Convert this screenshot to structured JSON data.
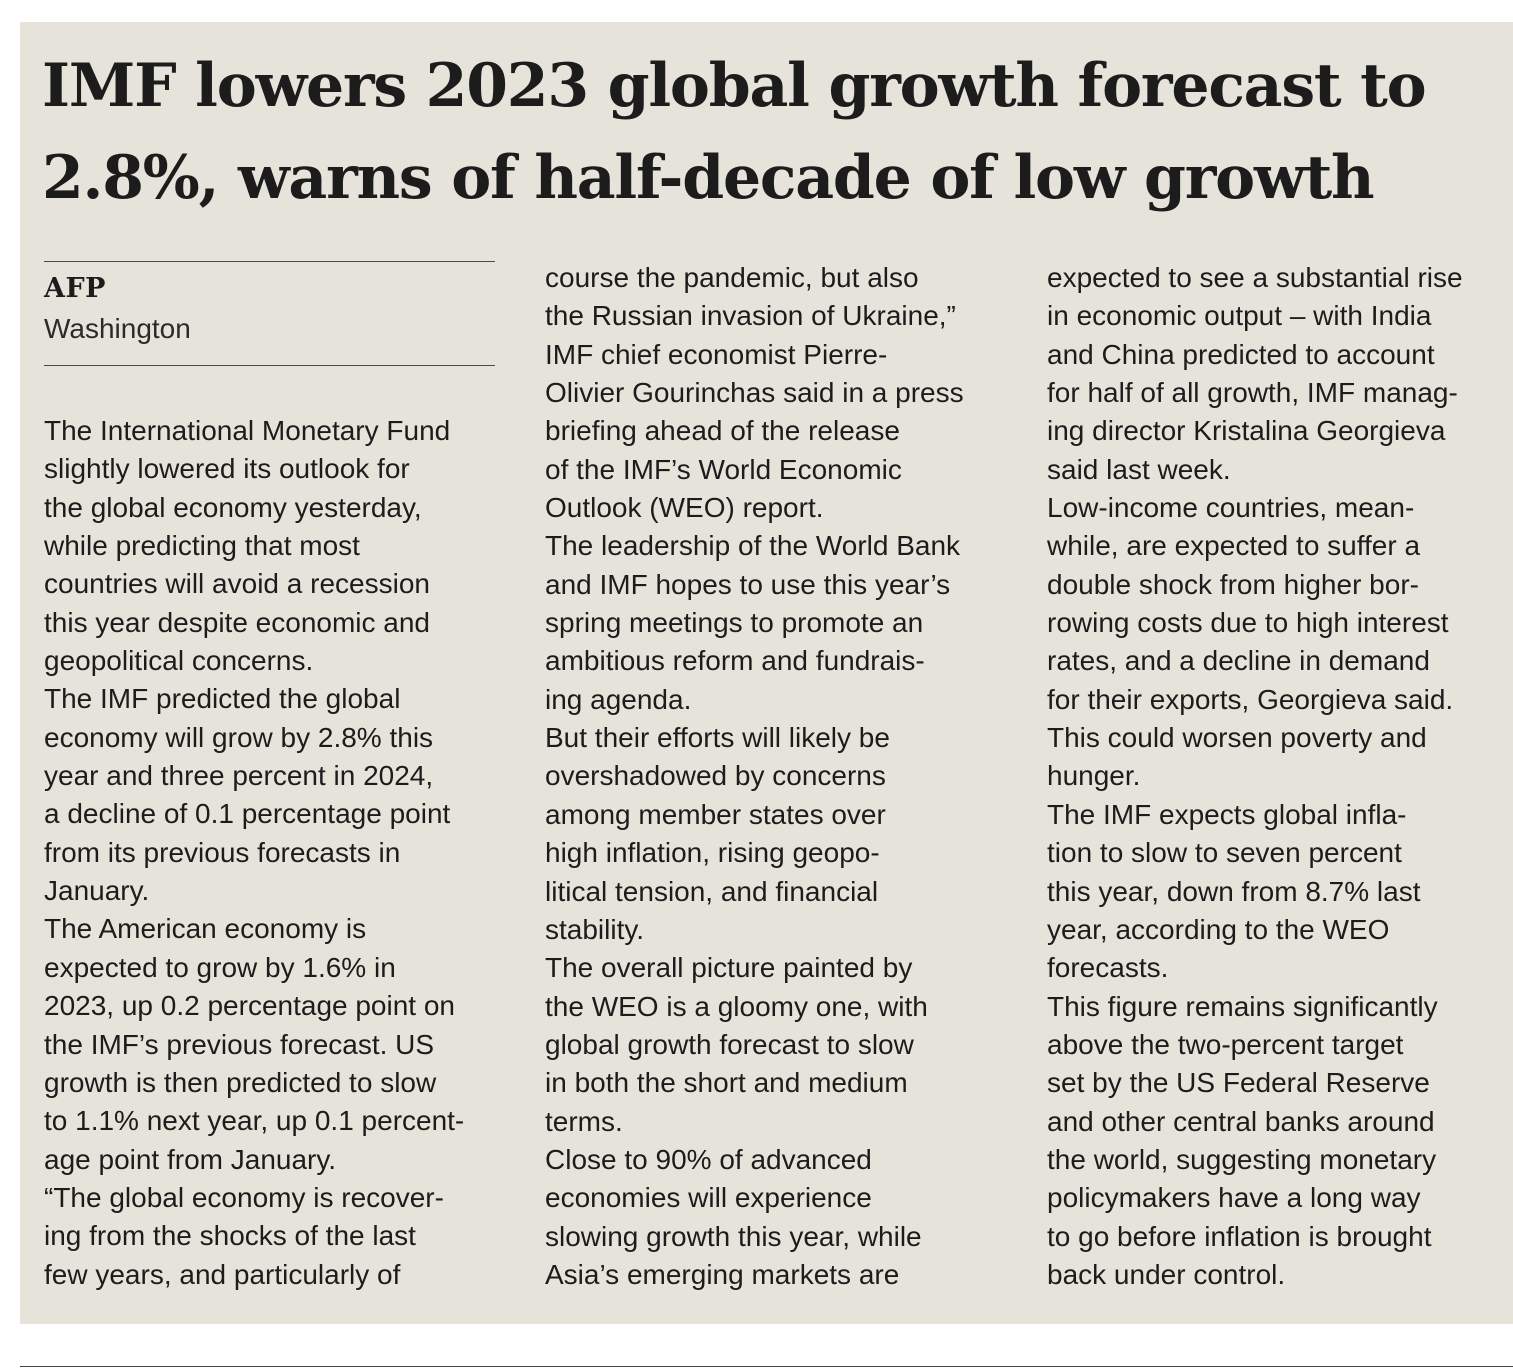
{
  "article": {
    "headline_line1": "IMF lowers 2023 global growth forecast to",
    "headline_line2": "2.8%, warns of half-decade of low growth",
    "agency": "AFP",
    "dateline": "Washington",
    "columns": [
      [
        "The International Monetary Fund",
        "slightly lowered its outlook for",
        "the global economy yesterday,",
        "while predicting that most",
        "countries will avoid a recession",
        "this year despite economic and",
        "geopolitical concerns.",
        "The IMF predicted the global",
        "economy will grow by 2.8% this",
        "year and three percent in 2024,",
        "a decline of 0.1 percentage point",
        "from its previous forecasts in",
        "January.",
        "The American economy is",
        "expected to grow by 1.6% in",
        "2023, up 0.2 percentage point on",
        "the IMF’s previous forecast. US",
        "growth is then predicted to slow",
        "to 1.1% next year, up 0.1 percent-",
        "age point from January.",
        "“The global economy is recover-",
        "ing from the shocks of the last",
        "few years, and particularly of"
      ],
      [
        "course the pandemic, but also",
        "the Russian invasion of Ukraine,”",
        "IMF chief economist Pierre-",
        "Olivier Gourinchas said in a press",
        "briefing ahead of the release",
        "of the IMF’s World Economic",
        "Outlook (WEO) report.",
        "The leadership of the World Bank",
        "and IMF hopes to use this year’s",
        "spring meetings to promote an",
        "ambitious reform and fundrais-",
        "ing agenda.",
        "But their efforts will likely be",
        "overshadowed by concerns",
        "among member states over",
        "high inflation, rising geopo-",
        "litical tension, and financial",
        "stability.",
        "The overall picture painted by",
        "the WEO is a gloomy one, with",
        "global growth forecast to slow",
        "in both the short and medium",
        "terms.",
        "Close to 90% of advanced",
        "economies will experience",
        "slowing growth this year, while",
        "Asia’s emerging markets are"
      ],
      [
        "expected to see a substantial rise",
        "in economic output – with India",
        "and China predicted to account",
        "for half of all growth, IMF manag-",
        "ing director Kristalina Georgieva",
        "said last week.",
        "Low-income countries, mean-",
        "while, are expected to suffer a",
        "double shock from higher bor-",
        "rowing costs due to high interest",
        "rates, and a decline in demand",
        "for their exports, Georgieva said.",
        "This could worsen poverty and",
        "hunger.",
        "The IMF expects global infla-",
        "tion to slow to seven percent",
        "this year, down from 8.7% last",
        "year, according to the WEO",
        "forecasts.",
        "This figure remains significantly",
        "above the two-percent target",
        "set by the US Federal Reserve",
        "and other central banks around",
        "the world, suggesting monetary",
        "policymakers have a long way",
        "to go before inflation is brought",
        "back under control."
      ]
    ]
  }
}
